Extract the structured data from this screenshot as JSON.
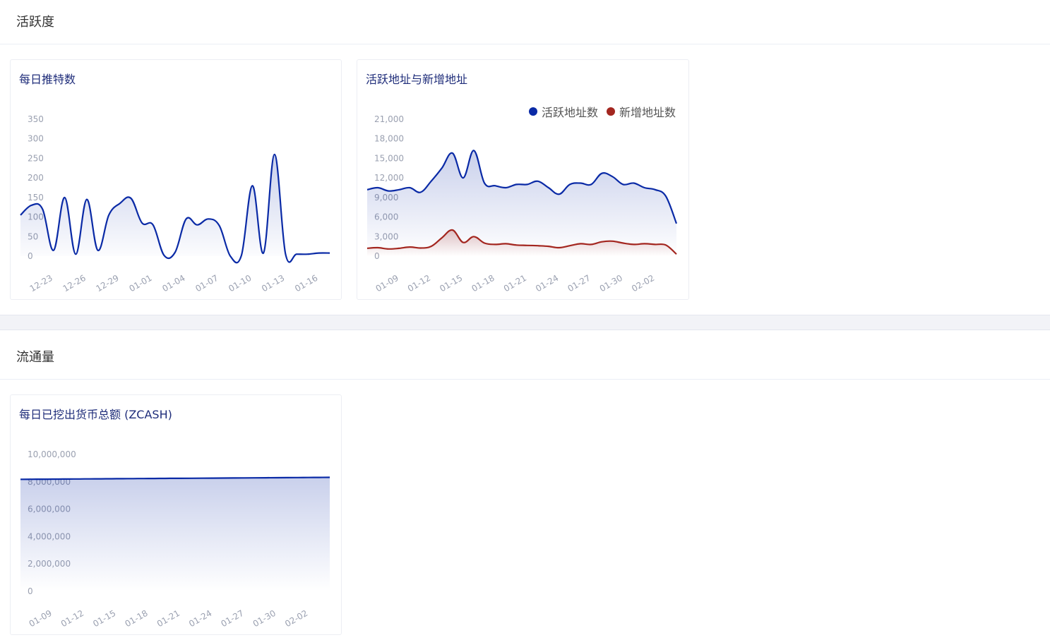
{
  "sections": {
    "activity": "活跃度",
    "circulation": "流通量"
  },
  "colors": {
    "blue": "#0a2aa6",
    "red": "#a3261f"
  },
  "charts": [
    {
      "title": "每日推特数",
      "chart_data": {
        "type": "area",
        "title": "每日推特数",
        "x": [
          "12-21",
          "12-22",
          "12-23",
          "12-24",
          "12-25",
          "12-26",
          "12-27",
          "12-28",
          "12-29",
          "12-30",
          "12-31",
          "01-01",
          "01-02",
          "01-03",
          "01-04",
          "01-05",
          "01-06",
          "01-07",
          "01-08",
          "01-09",
          "01-10",
          "01-11",
          "01-12",
          "01-13",
          "01-14",
          "01-15",
          "01-16",
          "01-17",
          "01-18"
        ],
        "x_tick_labels": [
          "12-23",
          "12-26",
          "12-29",
          "01-01",
          "01-04",
          "01-07",
          "01-10",
          "01-13",
          "01-16"
        ],
        "series": [
          {
            "values": [
              105,
              130,
              120,
              15,
              150,
              5,
              145,
              15,
              105,
              135,
              148,
              85,
              80,
              2,
              10,
              95,
              80,
              95,
              78,
              0,
              2,
              180,
              8,
              260,
              5,
              5,
              5,
              8,
              8
            ]
          }
        ],
        "y_ticks": [
          0,
          50,
          100,
          150,
          200,
          250,
          300,
          350
        ],
        "ylim": [
          0,
          350
        ]
      }
    },
    {
      "title": "活跃地址与新增地址",
      "legend": [
        "活跃地址数",
        "新增地址数"
      ],
      "chart_data": {
        "type": "area",
        "title": "活跃地址与新增地址",
        "x": [
          "01-07",
          "01-08",
          "01-09",
          "01-10",
          "01-11",
          "01-12",
          "01-13",
          "01-14",
          "01-15",
          "01-16",
          "01-17",
          "01-18",
          "01-19",
          "01-20",
          "01-21",
          "01-22",
          "01-23",
          "01-24",
          "01-25",
          "01-26",
          "01-27",
          "01-28",
          "01-29",
          "01-30",
          "01-31",
          "02-01",
          "02-02",
          "02-03",
          "02-04",
          "02-05"
        ],
        "x_tick_labels": [
          "01-09",
          "01-12",
          "01-15",
          "01-18",
          "01-21",
          "01-24",
          "01-27",
          "01-30",
          "02-02"
        ],
        "series": [
          {
            "name": "活跃地址数",
            "values": [
              10200,
              10500,
              10000,
              10200,
              10500,
              9800,
              11500,
              13500,
              15800,
              12000,
              16200,
              11200,
              10800,
              10500,
              11000,
              11000,
              11500,
              10500,
              9500,
              11000,
              11200,
              11000,
              12700,
              12200,
              11000,
              11200,
              10500,
              10200,
              9200,
              5000
            ]
          },
          {
            "name": "新增地址数",
            "values": [
              1200,
              1300,
              1100,
              1200,
              1400,
              1250,
              1500,
              2800,
              4000,
              2100,
              3000,
              2000,
              1800,
              1900,
              1700,
              1650,
              1600,
              1500,
              1300,
              1600,
              1900,
              1800,
              2200,
              2300,
              2000,
              1800,
              1900,
              1800,
              1700,
              300
            ]
          }
        ],
        "y_ticks": [
          0,
          3000,
          6000,
          9000,
          12000,
          15000,
          18000,
          21000
        ],
        "y_tick_labels": [
          "0",
          "3,000",
          "6,000",
          "9,000",
          "12,000",
          "15,000",
          "18,000",
          "21,000"
        ],
        "ylim": [
          0,
          21000
        ]
      }
    },
    {
      "title": "每日已挖出货币总额 (ZCASH)",
      "chart_data": {
        "type": "area",
        "title": "每日已挖出货币总额 (ZCASH)",
        "x": [
          "01-07",
          "01-08",
          "01-09",
          "01-10",
          "01-11",
          "01-12",
          "01-13",
          "01-14",
          "01-15",
          "01-16",
          "01-17",
          "01-18",
          "01-19",
          "01-20",
          "01-21",
          "01-22",
          "01-23",
          "01-24",
          "01-25",
          "01-26",
          "01-27",
          "01-28",
          "01-29",
          "01-30",
          "01-31",
          "02-01",
          "02-02",
          "02-03",
          "02-04",
          "02-05"
        ],
        "x_tick_labels": [
          "01-09",
          "01-12",
          "01-15",
          "01-18",
          "01-21",
          "01-24",
          "01-27",
          "01-30",
          "02-02"
        ],
        "series": [
          {
            "values": [
              8180000,
              8185000,
              8190000,
              8195000,
              8200000,
              8205000,
              8210000,
              8215000,
              8220000,
              8225000,
              8230000,
              8235000,
              8240000,
              8245000,
              8250000,
              8255000,
              8260000,
              8265000,
              8270000,
              8275000,
              8280000,
              8285000,
              8290000,
              8295000,
              8300000,
              8305000,
              8310000,
              8315000,
              8320000,
              8325000
            ]
          }
        ],
        "y_ticks": [
          0,
          2000000,
          4000000,
          6000000,
          8000000,
          10000000
        ],
        "y_tick_labels": [
          "0",
          "2,000,000",
          "4,000,000",
          "6,000,000",
          "8,000,000",
          "10,000,000"
        ],
        "ylim": [
          0,
          10000000
        ]
      }
    }
  ]
}
